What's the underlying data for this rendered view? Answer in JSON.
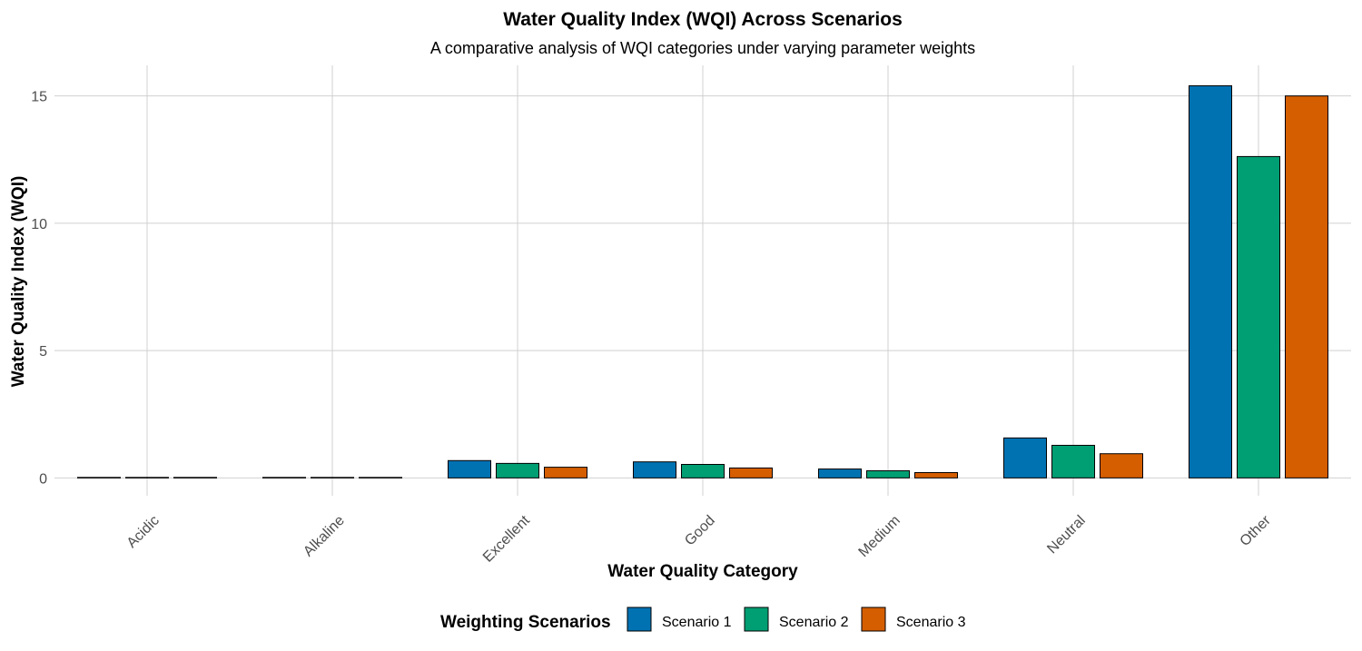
{
  "chart_data": {
    "type": "bar",
    "title": "Water Quality Index (WQI) Across Scenarios",
    "subtitle": "A comparative analysis of WQI categories under varying parameter weights",
    "xlabel": "Water Quality Category",
    "ylabel": "Water Quality Index (WQI)",
    "categories": [
      "Acidic",
      "Alkaline",
      "Excellent",
      "Good",
      "Medium",
      "Neutral",
      "Other"
    ],
    "ylim": [
      -0.7,
      16.2
    ],
    "yticks": [
      0,
      5,
      10,
      15
    ],
    "grid": true,
    "legend": {
      "title": "Weighting Scenarios",
      "position": "bottom"
    },
    "series": [
      {
        "name": "Scenario 1",
        "color": "#0072B2",
        "values": [
          0.02,
          0.02,
          0.68,
          0.63,
          0.35,
          1.57,
          15.4
        ]
      },
      {
        "name": "Scenario 2",
        "color": "#009E73",
        "values": [
          0.02,
          0.02,
          0.57,
          0.53,
          0.28,
          1.28,
          12.62
        ]
      },
      {
        "name": "Scenario 3",
        "color": "#D55E00",
        "values": [
          0.02,
          0.02,
          0.42,
          0.39,
          0.21,
          0.95,
          15.0
        ]
      }
    ]
  }
}
